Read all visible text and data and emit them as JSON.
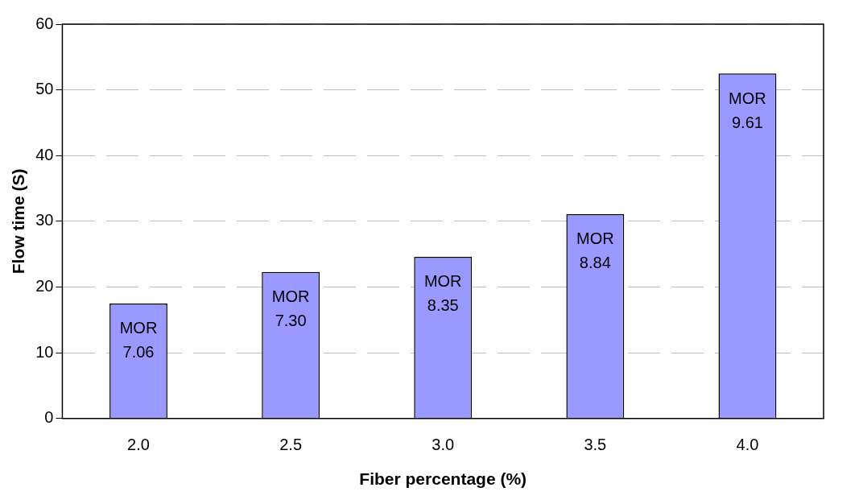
{
  "chart_data": {
    "type": "bar",
    "xlabel": "Fiber percentage (%)",
    "ylabel": "Flow time (S)",
    "categories": [
      "2.0",
      "2.5",
      "3.0",
      "3.5",
      "4.0"
    ],
    "values": [
      17.5,
      22.3,
      24.6,
      31.1,
      52.5
    ],
    "color": "#9999ff",
    "ylim": [
      0,
      60
    ],
    "yticks": [
      0,
      10,
      20,
      30,
      40,
      50,
      60
    ],
    "grid": "y",
    "legend": false,
    "annotations": [
      {
        "text": "MOR\n7.06",
        "x": "2.0",
        "y": 17.5
      },
      {
        "text": "MOR\n7.30",
        "x": "2.5",
        "y": 22.3
      },
      {
        "text": "MOR\n8.35",
        "x": "3.0",
        "y": 24.6
      },
      {
        "text": "MOR\n8.84",
        "x": "3.5",
        "y": 31.1
      },
      {
        "text": "MOR\n9.61",
        "x": "4.0",
        "y": 52.5
      }
    ]
  }
}
